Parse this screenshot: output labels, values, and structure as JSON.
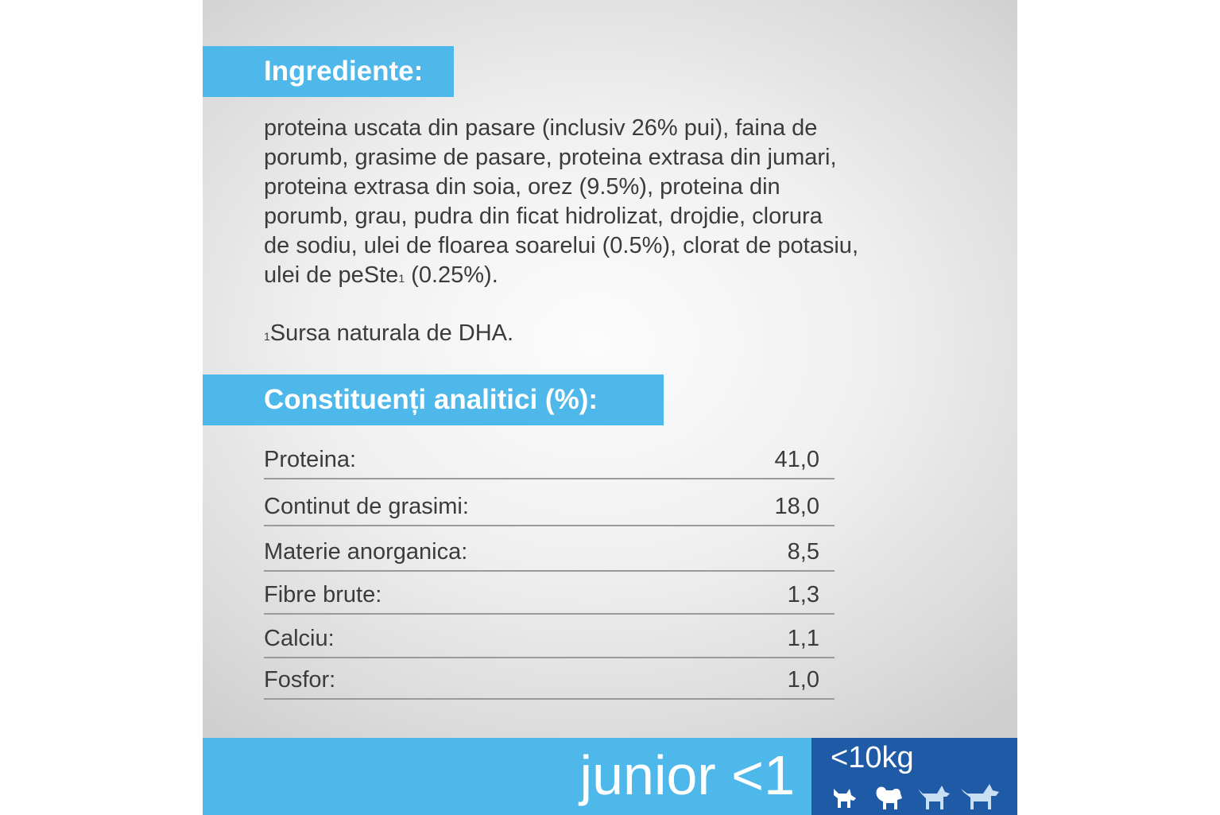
{
  "ingredients": {
    "header": "Ingrediente:",
    "lines": [
      "proteina uscata din pasare (inclusiv 26% pui), faina de",
      "porumb, grasime de pasare, proteina extrasa din jumari,",
      "proteina extrasa din soia, orez (9.5%), proteina din",
      "porumb, grau, pudra din ficat hidrolizat, drojdie, clorura",
      "de sodiu, ulei de floarea soarelui (0.5%), clorat de potasiu,"
    ],
    "last_line_start": "ulei de peSte",
    "last_line_sup": "1",
    "last_line_end": " (0.25%).",
    "note_sup": "1",
    "note_text": "Sursa naturala de DHA."
  },
  "constituents": {
    "header": "Constituenți analitici (%):",
    "rows": [
      {
        "label": "Proteina:",
        "value": "41,0"
      },
      {
        "label": "Continut de grasimi:",
        "value": "18,0"
      },
      {
        "label": "Materie anorganica:",
        "value": "8,5"
      },
      {
        "label": "Fibre brute:",
        "value": "1,3"
      },
      {
        "label": "Calciu:",
        "value": "1,1"
      },
      {
        "label": "Fosfor:",
        "value": "1,0"
      }
    ]
  },
  "footer": {
    "age_label": "junior <1",
    "weight_label": "<10kg",
    "dog_icons": [
      "small-dog-icon-white",
      "fluffy-dog-icon-white",
      "medium-dog-icon-light",
      "large-dog-icon-light"
    ]
  },
  "colors": {
    "accent_light_blue": "#4fb8ea",
    "accent_dark_blue": "#1f5aa6",
    "text": "#3b3b3b"
  }
}
